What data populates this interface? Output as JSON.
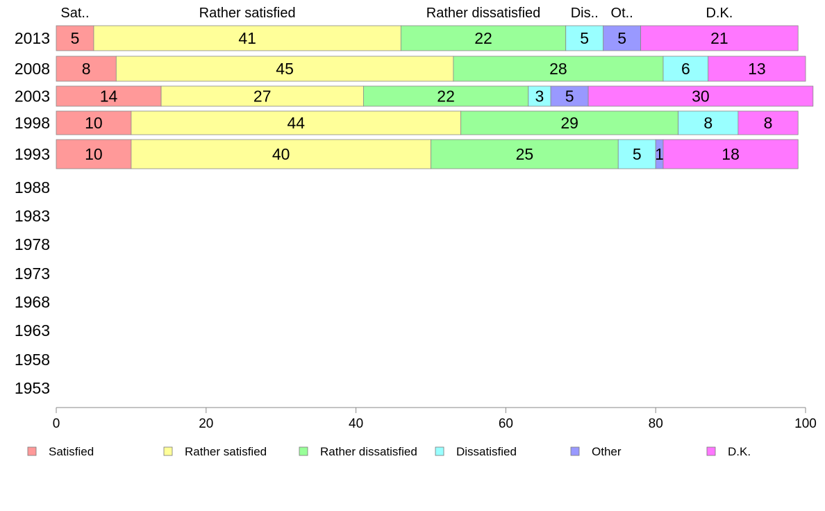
{
  "chart_data": {
    "type": "bar",
    "orientation": "horizontal",
    "stacked": true,
    "xlim": [
      0,
      100
    ],
    "xticks": [
      "0",
      "20",
      "40",
      "60",
      "80",
      "100"
    ],
    "grid": false,
    "legend_position": "bottom",
    "years": [
      "2013",
      "2008",
      "2003",
      "1998",
      "1993",
      "1988",
      "1983",
      "1978",
      "1973",
      "1968",
      "1963",
      "1958",
      "1953"
    ],
    "header_labels": [
      "Sat..",
      "Rather satisfied",
      "Rather dissatisfied",
      "Dis..",
      "Ot..",
      "D.K."
    ],
    "series": [
      {
        "name": "Satisfied",
        "color": "#ff9999",
        "values": [
          5,
          8,
          14,
          10,
          10,
          null,
          null,
          null,
          null,
          null,
          null,
          null,
          null
        ]
      },
      {
        "name": "Rather satisfied",
        "color": "#ffff99",
        "values": [
          41,
          45,
          27,
          44,
          40,
          null,
          null,
          null,
          null,
          null,
          null,
          null,
          null
        ]
      },
      {
        "name": "Rather dissatisfied",
        "color": "#99ff99",
        "values": [
          22,
          28,
          22,
          29,
          25,
          null,
          null,
          null,
          null,
          null,
          null,
          null,
          null
        ]
      },
      {
        "name": "Dissatisfied",
        "color": "#99ffff",
        "values": [
          5,
          6,
          3,
          8,
          5,
          null,
          null,
          null,
          null,
          null,
          null,
          null,
          null
        ]
      },
      {
        "name": "Other",
        "color": "#9999ff",
        "values": [
          5,
          0,
          5,
          0,
          1,
          null,
          null,
          null,
          null,
          null,
          null,
          null,
          null
        ]
      },
      {
        "name": "D.K.",
        "color": "#ff77ff",
        "values": [
          21,
          13,
          30,
          8,
          18,
          null,
          null,
          null,
          null,
          null,
          null,
          null,
          null
        ]
      }
    ]
  }
}
